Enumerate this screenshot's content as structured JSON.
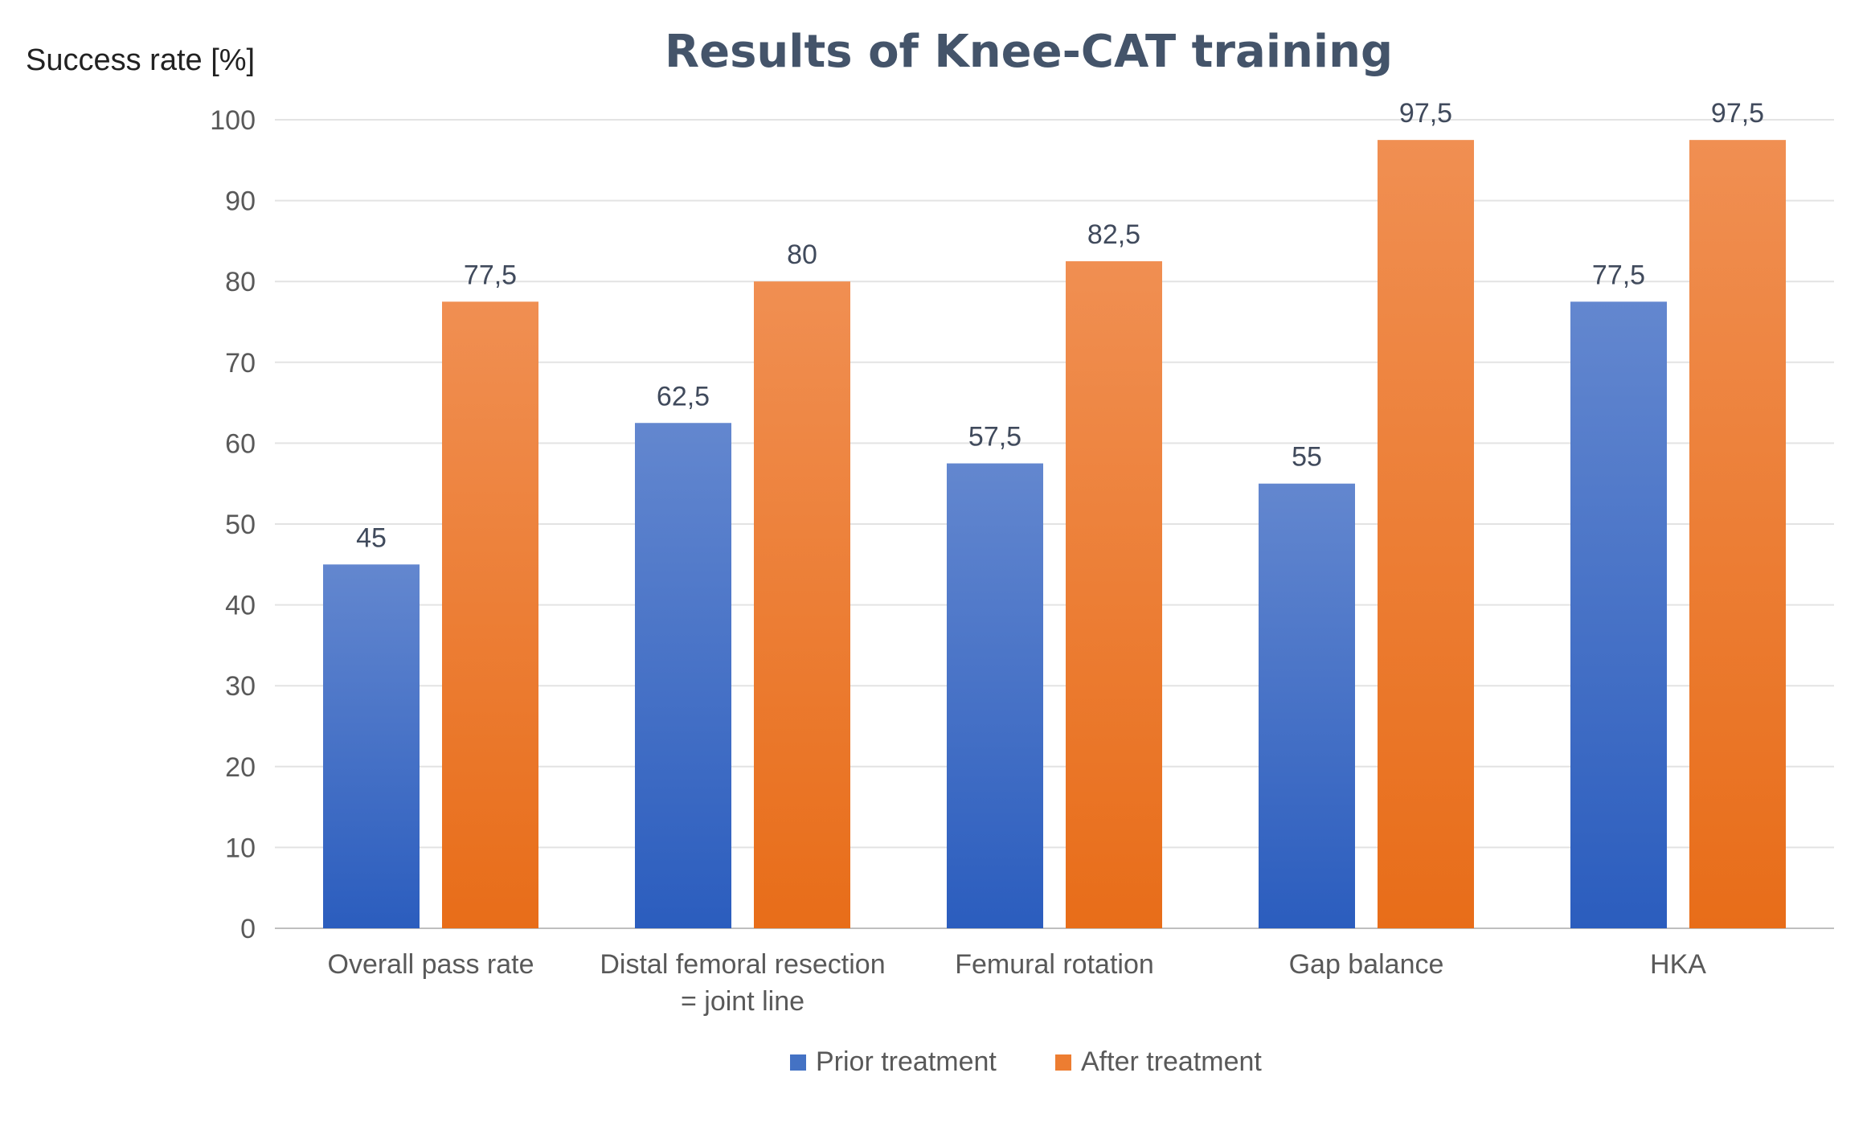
{
  "chart_data": {
    "type": "bar",
    "title": "Results of Knee-CAT training",
    "ylabel": "Success rate [%]",
    "xlabel": "",
    "ylim": [
      0,
      100
    ],
    "yticks": [
      "0",
      "10",
      "20",
      "30",
      "40",
      "50",
      "60",
      "70",
      "80",
      "90",
      "100"
    ],
    "grid": true,
    "legend_position": "bottom-center",
    "categories": [
      [
        "Overall pass rate"
      ],
      [
        "Distal femoral resection",
        "= joint line"
      ],
      [
        "Femural rotation"
      ],
      [
        "Gap balance"
      ],
      [
        "HKA"
      ]
    ],
    "series": [
      {
        "name": "Prior treatment",
        "color": "#4472c4",
        "values": [
          45,
          62.5,
          57.5,
          55,
          77.5
        ],
        "labels": [
          "45",
          "62,5",
          "57,5",
          "55",
          "77,5"
        ]
      },
      {
        "name": "After treatment",
        "color": "#ed7d31",
        "values": [
          77.5,
          80,
          82.5,
          97.5,
          97.5
        ],
        "labels": [
          "77,5",
          "80",
          "82,5",
          "97,5",
          "97,5"
        ]
      }
    ]
  }
}
